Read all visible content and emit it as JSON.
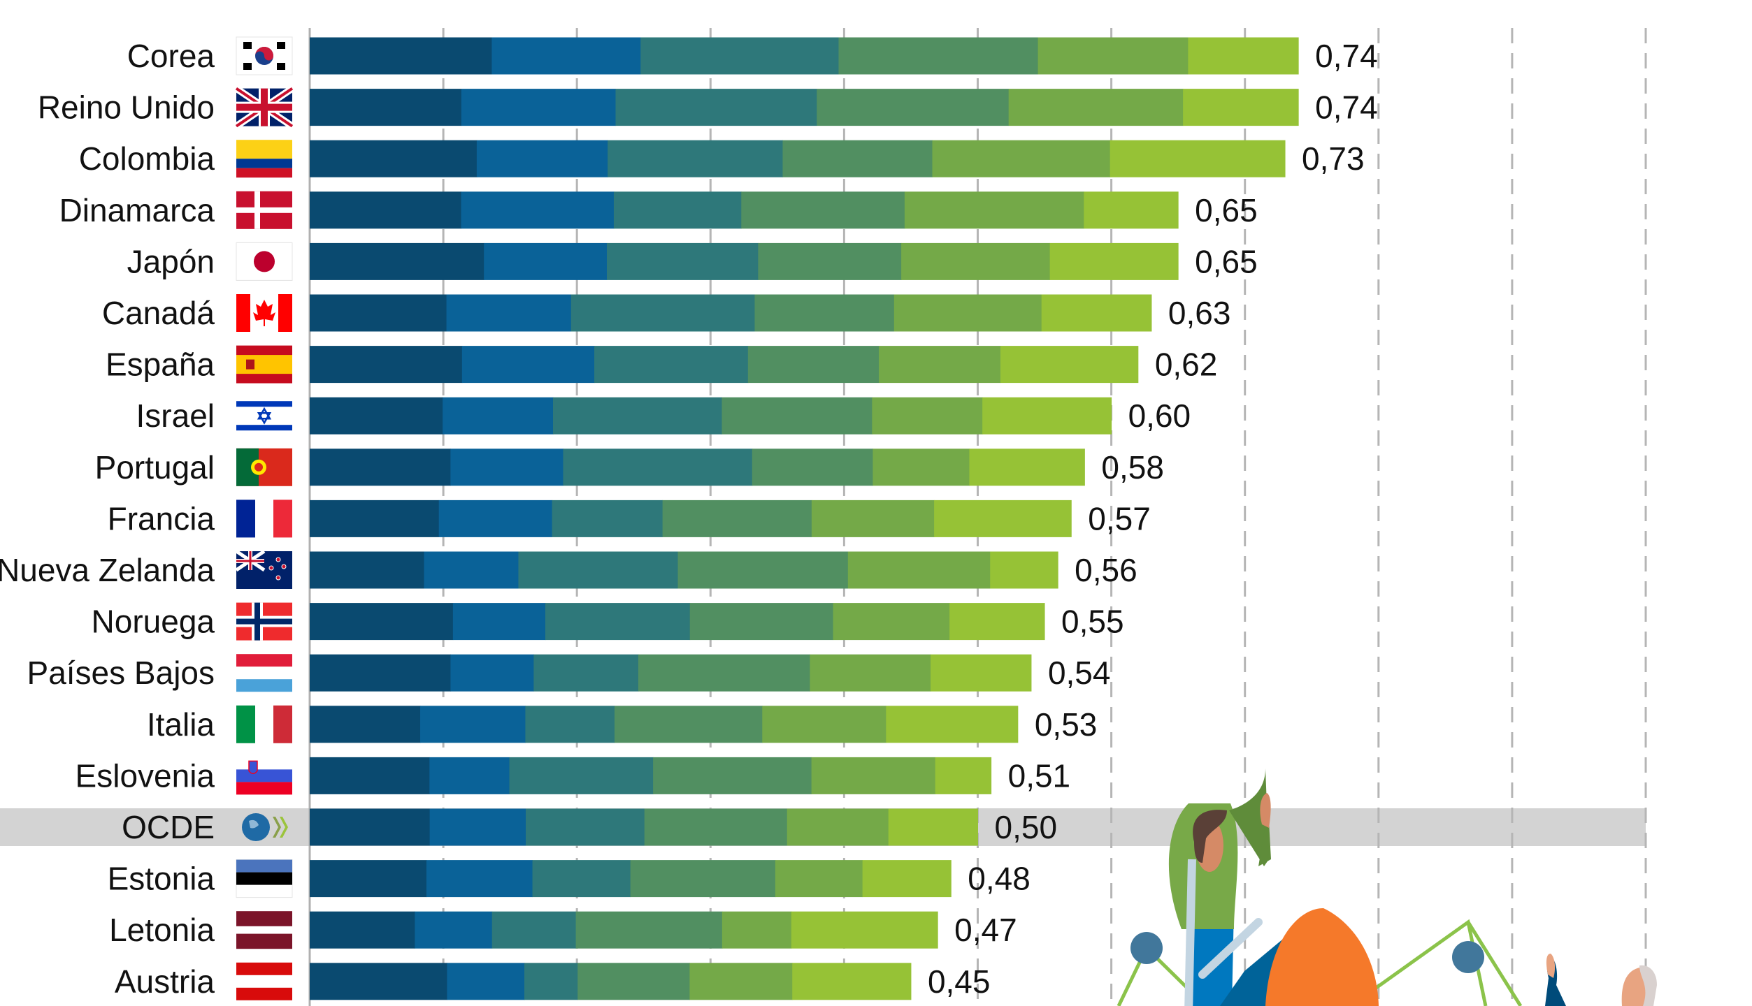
{
  "chart_data": {
    "type": "bar",
    "orientation": "horizontal",
    "stacked": true,
    "title": "",
    "xlabel": "",
    "ylabel": "",
    "xlim": [
      0,
      1.0
    ],
    "x_gridlines": [
      0.1,
      0.2,
      0.3,
      0.4,
      0.5,
      0.6,
      0.7,
      0.8,
      0.9,
      1.0
    ],
    "grid": "vertical dashed",
    "legend": "none",
    "highlight_category": "OCDE",
    "segment_colors": [
      "#0a4a70",
      "#0a6298",
      "#2e787a",
      "#518f61",
      "#74a948",
      "#96c236"
    ],
    "highlight_color": "#d3d3d3",
    "categories": [
      "Corea",
      "Reino Unido",
      "Colombia",
      "Dinamarca",
      "Japón",
      "Canadá",
      "España",
      "Israel",
      "Portugal",
      "Francia",
      "Nueva Zelanda",
      "Noruega",
      "Países Bajos",
      "Italia",
      "Eslovenia",
      "OCDE",
      "Estonia",
      "Letonia",
      "Austria"
    ],
    "flags": [
      "flag-korea",
      "flag-uk",
      "flag-colombia",
      "flag-denmark",
      "flag-japan",
      "flag-canada",
      "flag-spain",
      "flag-israel",
      "flag-portugal",
      "flag-france",
      "flag-new-zealand",
      "flag-norway",
      "flag-netherlands",
      "flag-italy",
      "flag-slovenia",
      "oecd-logo",
      "flag-estonia",
      "flag-latvia",
      "flag-austria"
    ],
    "totals": [
      0.74,
      0.74,
      0.73,
      0.65,
      0.65,
      0.63,
      0.62,
      0.6,
      0.58,
      0.57,
      0.56,
      0.55,
      0.54,
      0.53,
      0.51,
      0.5,
      0.48,
      0.47,
      0.45
    ],
    "total_labels": [
      "0,74",
      "0,74",
      "0,73",
      "0,65",
      "0,65",
      "0,63",
      "0,62",
      "0,60",
      "0,58",
      "0,57",
      "0,56",
      "0,55",
      "0,54",
      "0,53",
      "0,51",
      "0,50",
      "0,48",
      "0,47",
      "0,45"
    ],
    "segments": [
      [
        0.137,
        0.112,
        0.149,
        0.15,
        0.113,
        0.083
      ],
      [
        0.113,
        0.115,
        0.15,
        0.143,
        0.13,
        0.086
      ],
      [
        0.125,
        0.098,
        0.131,
        0.112,
        0.133,
        0.131
      ],
      [
        0.114,
        0.115,
        0.096,
        0.123,
        0.135,
        0.071
      ],
      [
        0.129,
        0.091,
        0.112,
        0.106,
        0.11,
        0.095
      ],
      [
        0.102,
        0.093,
        0.137,
        0.104,
        0.11,
        0.082
      ],
      [
        0.114,
        0.099,
        0.115,
        0.098,
        0.091,
        0.103
      ],
      [
        0.1,
        0.083,
        0.127,
        0.113,
        0.083,
        0.097
      ],
      [
        0.105,
        0.084,
        0.141,
        0.09,
        0.072,
        0.086
      ],
      [
        0.097,
        0.085,
        0.083,
        0.112,
        0.092,
        0.103
      ],
      [
        0.086,
        0.071,
        0.12,
        0.128,
        0.107,
        0.051
      ],
      [
        0.107,
        0.069,
        0.108,
        0.107,
        0.087,
        0.071
      ],
      [
        0.105,
        0.062,
        0.078,
        0.128,
        0.09,
        0.075
      ],
      [
        0.083,
        0.079,
        0.067,
        0.111,
        0.093,
        0.099
      ],
      [
        0.09,
        0.06,
        0.108,
        0.119,
        0.093,
        0.042
      ],
      [
        0.09,
        0.072,
        0.089,
        0.107,
        0.076,
        0.067
      ],
      [
        0.087,
        0.079,
        0.073,
        0.108,
        0.065,
        0.066
      ],
      [
        0.079,
        0.058,
        0.063,
        0.11,
        0.052,
        0.11
      ],
      [
        0.103,
        0.058,
        0.04,
        0.084,
        0.077,
        0.089
      ]
    ]
  },
  "illustration": "people-with-network-decoration"
}
